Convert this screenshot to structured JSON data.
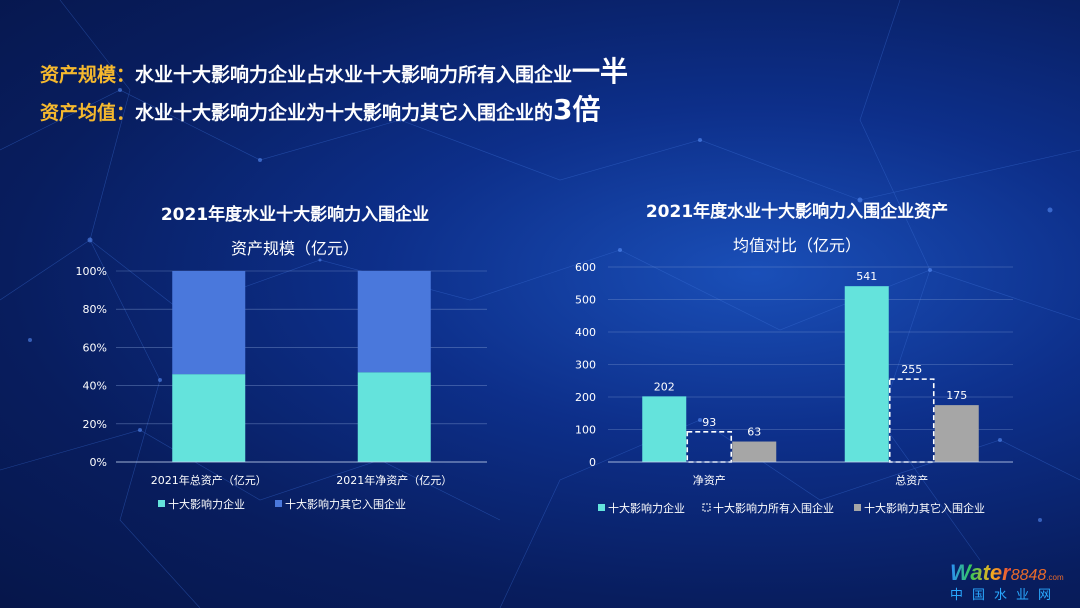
{
  "headlines": [
    {
      "keyword": "资产规模：",
      "text": "水业十大影响力企业占水业十大影响力所有入围企业",
      "emphasis": "一半"
    },
    {
      "keyword": "资产均值：",
      "text": "水业十大影响力企业为十大影响力其它入围企业的",
      "emphasis": "3倍"
    }
  ],
  "chart_data": [
    {
      "type": "bar",
      "stacked": "percent",
      "title": "2021年度水业十大影响力入围企业",
      "subtitle": "资产规模（亿元）",
      "categories": [
        "2021年总资产（亿元）",
        "2021年净资产（亿元）"
      ],
      "ylim": [
        0,
        100
      ],
      "yticks": [
        "0%",
        "20%",
        "40%",
        "60%",
        "80%",
        "100%"
      ],
      "series": [
        {
          "name": "十大影响力企业",
          "values": [
            46,
            47
          ],
          "color": "#64e3dc"
        },
        {
          "name": "十大影响力其它入围企业",
          "values": [
            54,
            53
          ],
          "color": "#4a78dc"
        }
      ],
      "grid": true,
      "legend": "bottom"
    },
    {
      "type": "bar",
      "title": "2021年度水业十大影响力入围企业资产",
      "subtitle": "均值对比（亿元）",
      "categories": [
        "净资产",
        "总资产"
      ],
      "ylim": [
        0,
        600
      ],
      "yticks": [
        "0",
        "100",
        "200",
        "300",
        "400",
        "500",
        "600"
      ],
      "series": [
        {
          "name": "十大影响力企业",
          "values": [
            202,
            541
          ],
          "color": "#64e3dc",
          "style": "solid"
        },
        {
          "name": "十大影响力所有入围企业",
          "values": [
            93,
            255
          ],
          "color": "#ffffff",
          "style": "dashed"
        },
        {
          "name": "十大影响力其它入围企业",
          "values": [
            63,
            175
          ],
          "color": "#a6a6a6",
          "style": "solid"
        }
      ],
      "grid": true,
      "legend": "bottom"
    }
  ],
  "logo": {
    "brand": "Water",
    "number": "8848",
    "suffix": ".com",
    "subtitle": "中国水业网"
  }
}
